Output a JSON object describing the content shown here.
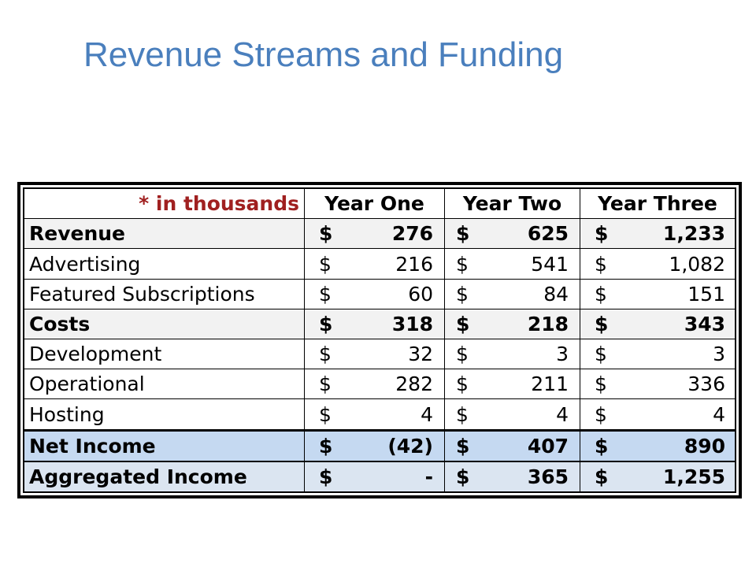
{
  "title": "Revenue Streams and Funding",
  "table": {
    "header": {
      "label": "* in thousands",
      "columns": [
        "Year One",
        "Year Two",
        "Year Three"
      ]
    },
    "currency_symbol": "$",
    "rows": [
      {
        "label": "Revenue",
        "values": [
          "276",
          "625",
          "1,233"
        ]
      },
      {
        "label": "Advertising",
        "values": [
          "216",
          "541",
          "1,082"
        ]
      },
      {
        "label": "Featured Subscriptions",
        "values": [
          "60",
          "84",
          "151"
        ]
      },
      {
        "label": "Costs",
        "values": [
          "318",
          "218",
          "343"
        ]
      },
      {
        "label": "Development",
        "values": [
          "32",
          "3",
          "3"
        ]
      },
      {
        "label": "Operational",
        "values": [
          "282",
          "211",
          "336"
        ]
      },
      {
        "label": "Hosting",
        "values": [
          "4",
          "4",
          "4"
        ]
      },
      {
        "label": "Net Income",
        "values": [
          "(42)",
          "407",
          "890"
        ]
      },
      {
        "label": "Aggregated Income",
        "values": [
          "-",
          "365",
          "1,255"
        ]
      }
    ]
  },
  "colors": {
    "title": "#4a7fbd",
    "header_label": "#a02020",
    "net_income_fill": "#c5d9f1",
    "aggregated_income_fill": "#dbe5f1",
    "section_fill": "#f2f2f2"
  }
}
